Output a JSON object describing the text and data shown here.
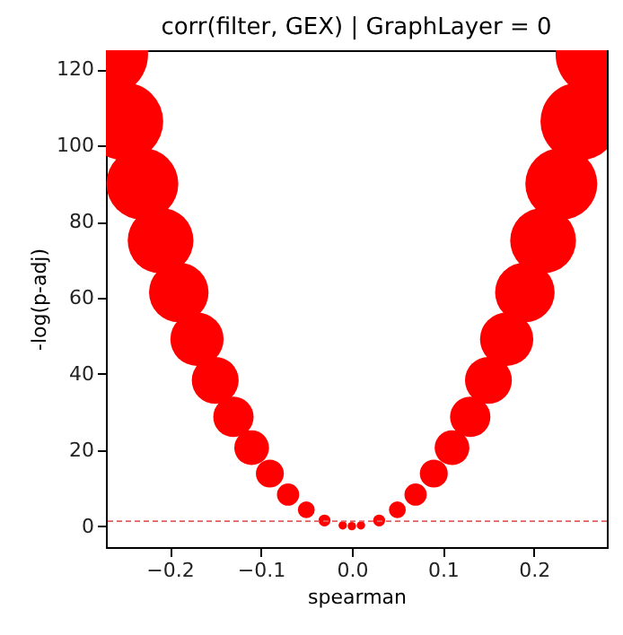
{
  "chart_data": {
    "type": "bubble",
    "title": "corr(filter, GEX) | GraphLayer = 0",
    "xlabel": "spearman",
    "ylabel": "-log(p-adj)",
    "x": [
      -0.27,
      -0.25,
      -0.23,
      -0.21,
      -0.19,
      -0.17,
      -0.15,
      -0.13,
      -0.11,
      -0.09,
      -0.07,
      -0.05,
      -0.03,
      -0.01,
      0,
      0.01,
      0.03,
      0.05,
      0.07,
      0.09,
      0.11,
      0.13,
      0.15,
      0.17,
      0.19,
      0.21,
      0.23,
      0.25,
      0.27
    ],
    "series": [
      {
        "color": "#ff0000",
        "values": [
          123.9,
          106.3,
          89.9,
          75.0,
          61.4,
          49.1,
          38.3,
          28.7,
          20.6,
          13.8,
          8.3,
          4.3,
          1.5,
          0.2,
          0,
          0.2,
          1.5,
          4.3,
          8.3,
          13.8,
          20.6,
          28.7,
          38.3,
          49.1,
          61.4,
          75.0,
          89.9,
          106.3,
          123.9
        ],
        "sizes": [
          1,
          0.86,
          0.73,
          0.61,
          0.5,
          0.4,
          0.31,
          0.23,
          0.17,
          0.11,
          0.07,
          0.04,
          0.02,
          0.01,
          0.01,
          0.01,
          0.02,
          0.04,
          0.07,
          0.11,
          0.17,
          0.23,
          0.31,
          0.4,
          0.5,
          0.61,
          0.73,
          0.86,
          1
        ]
      }
    ],
    "xlim": [
      -0.27,
      0.28
    ],
    "ylim": [
      -5.5,
      125
    ],
    "xticks": [
      {
        "value": -0.2,
        "label": "−0.2"
      },
      {
        "value": -0.1,
        "label": "−0.1"
      },
      {
        "value": 0,
        "label": "0.0"
      },
      {
        "value": 0.1,
        "label": "0.1"
      },
      {
        "value": 0.2,
        "label": "0.2"
      }
    ],
    "yticks": [
      0,
      20,
      40,
      60,
      80,
      100,
      120
    ],
    "ref_lines": [
      {
        "axis": "y",
        "value": 1.3,
        "color": "#e06060",
        "line_style": "dashed"
      }
    ],
    "grid": false
  }
}
